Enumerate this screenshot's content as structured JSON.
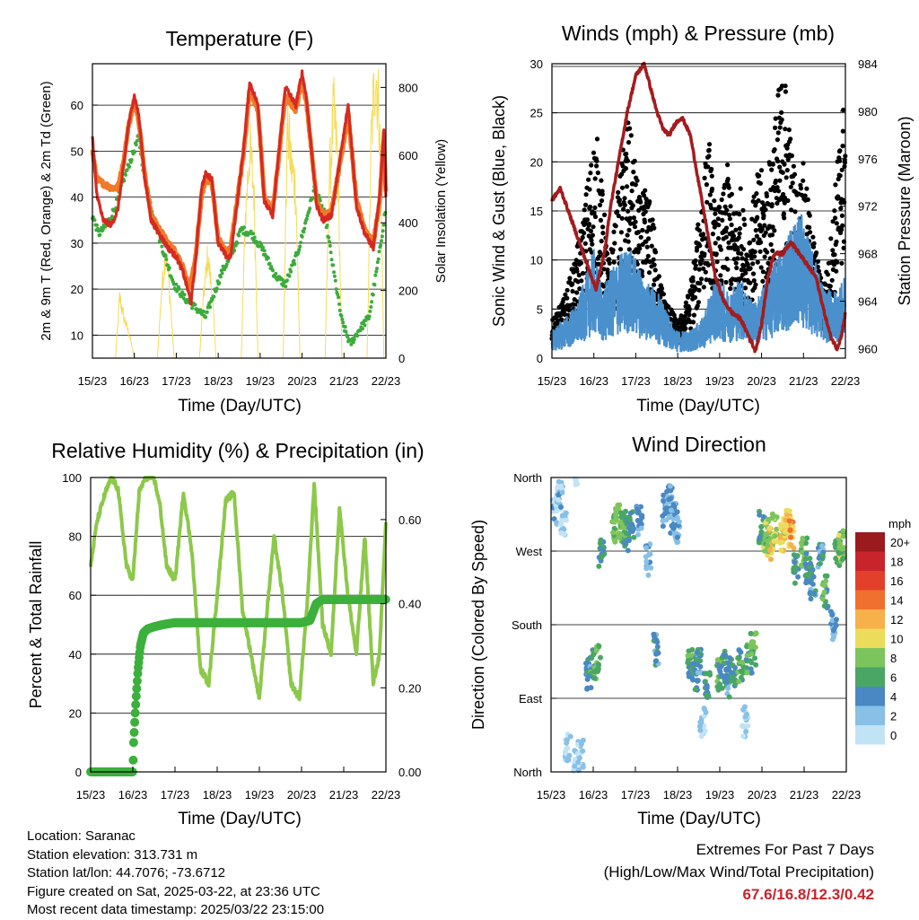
{
  "station_info": {
    "location": "Location: Saranac",
    "elevation": "Station elevation: 313.731 m",
    "latlon": "Station lat/lon: 44.7076; -73.6712",
    "created": "Figure created on Sat, 2025-03-22, at 23:36 UTC",
    "latest": "Most recent data timestamp: 2025/03/22 23:15:00"
  },
  "extremes": {
    "title": "Extremes For Past 7 Days",
    "subtitle": "(High/Low/Max Wind/Total Precipitation)",
    "values": "67.6/16.8/12.3/0.42"
  },
  "colors": {
    "temp_2m": "#d42a22",
    "temp_9m": "#f07a28",
    "dewpoint": "#3cab3c",
    "insolation": "#f4dc5a",
    "wind": "#4a90cc",
    "gust": "#000000",
    "pressure": "#a31c1e",
    "rh": "#8cc84a",
    "precip": "#3cb03c"
  },
  "chart_data": [
    {
      "type": "line",
      "title": "Temperature (F)",
      "xlabel": "Time (Day/UTC)",
      "ylabel": "2m & 9m T (Red, Orange) & 2m Td (Green)",
      "ylabel_right": "Solar Insolation (Yellow)",
      "x_ticks": [
        "15/23",
        "16/23",
        "17/23",
        "18/23",
        "19/23",
        "20/23",
        "21/23",
        "22/23"
      ],
      "xlim": [
        0,
        7
      ],
      "ylim": [
        5,
        69
      ],
      "y_ticks": [
        10,
        20,
        30,
        40,
        50,
        60
      ],
      "ylim_right": [
        0,
        870
      ],
      "y_ticks_right": [
        0,
        200,
        400,
        600,
        800
      ],
      "series": [
        {
          "name": "2m T",
          "color": "#d42a22",
          "x": [
            0,
            0.1,
            0.25,
            0.45,
            0.6,
            0.75,
            0.85,
            0.95,
            1.0,
            1.1,
            1.25,
            1.4,
            1.6,
            1.8,
            2.0,
            2.15,
            2.3,
            2.35,
            2.45,
            2.6,
            2.7,
            2.85,
            3.0,
            3.2,
            3.3,
            3.4,
            3.6,
            3.75,
            3.95,
            4.1,
            4.3,
            4.45,
            4.6,
            4.85,
            5.0,
            5.1,
            5.25,
            5.35,
            5.5,
            5.7,
            5.9,
            6.1,
            6.3,
            6.5,
            6.7,
            6.85,
            6.95,
            7.0
          ],
          "values": [
            53,
            41,
            35,
            34,
            37,
            47,
            55,
            60,
            62,
            58,
            44,
            35,
            32,
            29,
            27,
            24,
            19,
            17,
            25,
            42,
            45,
            44,
            30,
            27,
            27,
            35,
            50,
            65,
            60,
            39,
            36,
            50,
            64,
            60,
            67,
            62,
            48,
            38,
            35,
            36,
            48,
            60,
            38,
            32,
            29,
            40,
            55,
            40
          ]
        },
        {
          "name": "9m T",
          "color": "#f07a28",
          "x": [
            0,
            0.1,
            0.25,
            0.45,
            0.6,
            0.75,
            0.85,
            0.95,
            1.0,
            1.1,
            1.25,
            1.4,
            1.6,
            1.8,
            2.0,
            2.15,
            2.3,
            2.45,
            2.6,
            2.7,
            2.85,
            3.0,
            3.2,
            3.3,
            3.4,
            3.6,
            3.75,
            3.95,
            4.1,
            4.3,
            4.45,
            4.6,
            4.85,
            5.0,
            5.1,
            5.25,
            5.35,
            5.5,
            5.7,
            5.9,
            6.1,
            6.3,
            6.5,
            6.7,
            6.85,
            6.95,
            7.0
          ],
          "values": [
            50,
            44,
            43,
            42,
            42,
            48,
            55,
            59,
            61,
            57,
            45,
            36,
            33,
            30,
            28,
            25,
            20,
            26,
            40,
            44,
            43,
            31,
            28,
            29,
            36,
            49,
            63,
            59,
            40,
            37,
            49,
            62,
            59,
            65,
            61,
            48,
            39,
            36,
            37,
            47,
            58,
            39,
            33,
            30,
            39,
            53,
            41
          ]
        },
        {
          "name": "2m Td",
          "color": "#3cab3c",
          "x": [
            0,
            0.15,
            0.35,
            0.55,
            0.75,
            0.95,
            1.1,
            1.25,
            1.45,
            1.7,
            1.95,
            2.2,
            2.45,
            2.7,
            2.9,
            3.1,
            3.3,
            3.55,
            3.8,
            4.1,
            4.35,
            4.6,
            4.9,
            5.1,
            5.3,
            5.55,
            5.75,
            5.95,
            6.15,
            6.35,
            6.6,
            6.85,
            7.0
          ],
          "values": [
            36,
            32,
            34,
            38,
            44,
            49,
            53,
            44,
            36,
            28,
            21,
            18,
            16,
            14,
            19,
            24,
            27,
            33,
            32,
            28,
            23,
            21,
            28,
            35,
            42,
            36,
            24,
            13,
            8,
            11,
            14,
            28,
            38
          ]
        },
        {
          "name": "Solar Insolation",
          "color": "#f4dc5a",
          "axis": "right",
          "x": [
            0,
            0.55,
            0.65,
            0.75,
            0.9,
            1.0,
            1.55,
            1.65,
            1.75,
            1.85,
            1.95,
            2.55,
            2.65,
            2.75,
            2.85,
            2.95,
            3.55,
            3.65,
            3.75,
            3.85,
            3.95,
            4.55,
            4.65,
            4.75,
            4.85,
            4.95,
            5.55,
            5.65,
            5.75,
            5.85,
            5.95,
            6.55,
            6.65,
            6.75,
            6.85,
            6.95,
            7.0
          ],
          "values": [
            0,
            0,
            180,
            120,
            60,
            0,
            0,
            200,
            320,
            180,
            0,
            0,
            180,
            300,
            200,
            0,
            0,
            420,
            620,
            500,
            0,
            0,
            680,
            560,
            500,
            0,
            0,
            520,
            720,
            600,
            0,
            0,
            640,
            860,
            700,
            0,
            0
          ]
        }
      ]
    },
    {
      "type": "scatter",
      "title": "Winds (mph) & Pressure (mb)",
      "xlabel": "Time (Day/UTC)",
      "ylabel": "Sonic Wind & Gust (Blue, Black)",
      "ylabel_right": "Station Pressure (Maroon)",
      "x_ticks": [
        "15/23",
        "16/23",
        "17/23",
        "18/23",
        "19/23",
        "20/23",
        "21/23",
        "22/23"
      ],
      "xlim": [
        0,
        7
      ],
      "ylim": [
        0,
        30
      ],
      "y_ticks": [
        0,
        5,
        10,
        15,
        20,
        25,
        30
      ],
      "ylim_right": [
        959.2,
        984
      ],
      "y_ticks_right": [
        960,
        964,
        968,
        972,
        976,
        980,
        984
      ],
      "series": [
        {
          "name": "Sonic Wind",
          "color": "#4a90cc",
          "x": [
            0,
            0.3,
            0.6,
            0.8,
            1.0,
            1.2,
            1.5,
            1.7,
            1.9,
            2.2,
            2.5,
            2.8,
            3.0,
            3.3,
            3.6,
            3.9,
            4.2,
            4.5,
            4.8,
            5.0,
            5.3,
            5.6,
            5.9,
            6.2,
            6.5,
            6.8,
            7.0
          ],
          "values": [
            2,
            3,
            4,
            6,
            8,
            5,
            7,
            8,
            8,
            6,
            5,
            3,
            2,
            2,
            3,
            6,
            5,
            6,
            4,
            5,
            7,
            9,
            11,
            8,
            5,
            5,
            6
          ]
        },
        {
          "name": "Gust",
          "color": "#000000",
          "x": [
            0,
            0.15,
            0.3,
            0.45,
            0.6,
            0.75,
            0.9,
            1.05,
            1.2,
            1.35,
            1.5,
            1.65,
            1.8,
            1.95,
            2.1,
            2.25,
            2.4,
            2.55,
            2.7,
            2.85,
            3.0,
            3.15,
            3.3,
            3.45,
            3.6,
            3.75,
            3.9,
            4.05,
            4.2,
            4.35,
            4.5,
            4.65,
            4.8,
            4.95,
            5.1,
            5.25,
            5.4,
            5.55,
            5.7,
            5.85,
            6.0,
            6.15,
            6.3,
            6.45,
            6.6,
            6.75,
            6.9,
            7.0
          ],
          "values": [
            3,
            4,
            5,
            7,
            9,
            12,
            16,
            19,
            14,
            8,
            11,
            16,
            20,
            17,
            13,
            14,
            12,
            7,
            5,
            4,
            3,
            4,
            6,
            10,
            15,
            18,
            12,
            13,
            16,
            12,
            14,
            10,
            13,
            16,
            14,
            18,
            22,
            24,
            18,
            14,
            16,
            12,
            9,
            6,
            8,
            14,
            20,
            22
          ]
        },
        {
          "name": "Station Pressure",
          "color": "#a31c1e",
          "axis": "right",
          "x": [
            0,
            0.2,
            0.35,
            0.55,
            0.75,
            0.9,
            1.05,
            1.25,
            1.4,
            1.6,
            1.8,
            2.0,
            2.2,
            2.35,
            2.5,
            2.65,
            2.8,
            2.95,
            3.1,
            3.3,
            3.5,
            3.7,
            3.9,
            4.1,
            4.3,
            4.5,
            4.7,
            4.85,
            5.0,
            5.15,
            5.3,
            5.5,
            5.7,
            5.9,
            6.1,
            6.3,
            6.5,
            6.65,
            6.8,
            6.9,
            7.0
          ],
          "values": [
            972.5,
            973.5,
            972,
            970,
            968,
            966.5,
            965,
            968,
            972,
            976,
            980,
            983,
            984,
            982,
            980,
            978.5,
            978,
            979,
            979.5,
            978,
            974,
            970,
            966,
            964,
            963,
            962.5,
            961,
            959.8,
            962,
            966,
            968,
            968,
            969,
            968,
            967,
            966,
            963,
            961,
            960,
            961,
            963
          ]
        }
      ]
    },
    {
      "type": "line",
      "title": "Relative Humidity (%) & Precipitation (in)",
      "xlabel": "Time (Day/UTC)",
      "ylabel": "Percent & Total Rainfall",
      "x_ticks": [
        "15/23",
        "16/23",
        "17/23",
        "18/23",
        "19/23",
        "20/23",
        "21/23",
        "22/23"
      ],
      "xlim": [
        0,
        7
      ],
      "ylim": [
        0,
        100
      ],
      "y_ticks": [
        0,
        20,
        40,
        60,
        80,
        100
      ],
      "ylim_right": [
        0,
        0.7
      ],
      "y_ticks_right": [
        "0.00",
        "0.20",
        "0.40",
        "0.60"
      ],
      "series": [
        {
          "name": "Relative Humidity",
          "color": "#8cc84a",
          "x": [
            0,
            0.15,
            0.35,
            0.5,
            0.65,
            0.85,
            1.0,
            1.15,
            1.3,
            1.5,
            1.65,
            1.8,
            2.0,
            2.2,
            2.4,
            2.6,
            2.8,
            3.0,
            3.2,
            3.4,
            3.6,
            3.8,
            4.0,
            4.15,
            4.35,
            4.55,
            4.75,
            4.95,
            5.15,
            5.3,
            5.5,
            5.7,
            5.9,
            6.1,
            6.3,
            6.5,
            6.7,
            6.85,
            7.0
          ],
          "values": [
            70,
            85,
            95,
            100,
            96,
            70,
            65,
            95,
            100,
            100,
            90,
            70,
            65,
            95,
            75,
            35,
            30,
            60,
            92,
            95,
            55,
            40,
            25,
            50,
            80,
            60,
            30,
            25,
            60,
            98,
            50,
            40,
            90,
            60,
            40,
            80,
            30,
            40,
            85
          ]
        },
        {
          "name": "Total Precipitation",
          "color": "#3cb03c",
          "axis": "right",
          "x": [
            0,
            0.5,
            1.0,
            1.02,
            1.05,
            1.08,
            1.12,
            1.18,
            1.25,
            1.35,
            1.5,
            1.7,
            2.0,
            3.0,
            4.0,
            5.0,
            5.2,
            5.35,
            5.5,
            5.7,
            6.0,
            6.5,
            7.0
          ],
          "values": [
            0,
            0,
            0,
            0.07,
            0.13,
            0.18,
            0.24,
            0.3,
            0.33,
            0.34,
            0.345,
            0.35,
            0.355,
            0.355,
            0.355,
            0.355,
            0.36,
            0.4,
            0.41,
            0.41,
            0.41,
            0.41,
            0.41
          ]
        }
      ]
    },
    {
      "type": "scatter",
      "title": "Wind Direction",
      "xlabel": "Time (Day/UTC)",
      "ylabel": "Direction (Colored By Speed)",
      "x_ticks": [
        "15/23",
        "16/23",
        "17/23",
        "18/23",
        "19/23",
        "20/23",
        "21/23",
        "22/23"
      ],
      "xlim": [
        0,
        7
      ],
      "ylim": [
        0,
        360
      ],
      "y_tick_labels": [
        "North",
        "East",
        "South",
        "West",
        "North"
      ],
      "y_tick_values": [
        0,
        90,
        180,
        270,
        360
      ],
      "colorbar_title": "mph",
      "colorbar_labels": [
        "0",
        "2",
        "4",
        "6",
        "8",
        "10",
        "12",
        "14",
        "16",
        "18",
        "20+"
      ],
      "colorbar_colors": [
        "#c2e3f5",
        "#88c0e6",
        "#4a88c4",
        "#49a664",
        "#7cc45c",
        "#ecdc5c",
        "#f7b04a",
        "#f07030",
        "#e2402a",
        "#c8242c",
        "#9a1a1e"
      ],
      "series": [
        {
          "name": "Wind Direction",
          "color": "#4a88c4",
          "x": [
            0.1,
            0.2,
            0.3,
            0.4,
            0.6,
            0.7,
            0.9,
            1.0,
            1.1,
            1.2,
            1.5,
            1.6,
            1.7,
            1.8,
            1.9,
            2.1,
            2.3,
            2.5,
            2.7,
            2.8,
            2.9,
            3.0,
            3.3,
            3.4,
            3.5,
            3.6,
            3.7,
            4.0,
            4.1,
            4.2,
            4.3,
            4.5,
            4.6,
            4.7,
            4.8,
            5.0,
            5.1,
            5.2,
            5.3,
            5.5,
            5.6,
            5.7,
            5.8,
            6.0,
            6.1,
            6.2,
            6.4,
            6.5,
            6.7,
            6.8,
            6.9
          ],
          "values": [
            320,
            340,
            310,
            30,
            10,
            20,
            120,
            130,
            140,
            270,
            300,
            310,
            300,
            290,
            300,
            310,
            260,
            150,
            320,
            330,
            310,
            300,
            130,
            120,
            130,
            60,
            110,
            120,
            130,
            110,
            120,
            130,
            60,
            140,
            150,
            300,
            290,
            280,
            300,
            290,
            300,
            290,
            250,
            270,
            250,
            230,
            260,
            220,
            180,
            270,
            280
          ],
          "speeds": [
            2,
            2,
            1,
            1,
            1,
            1,
            4,
            6,
            7,
            5,
            7,
            8,
            7,
            6,
            5,
            3,
            3,
            4,
            3,
            3,
            3,
            2,
            6,
            5,
            4,
            1,
            5,
            6,
            5,
            4,
            5,
            6,
            1,
            6,
            7,
            6,
            8,
            10,
            9,
            11,
            10,
            12,
            6,
            7,
            5,
            4,
            4,
            6,
            3,
            6,
            8
          ]
        }
      ]
    }
  ]
}
